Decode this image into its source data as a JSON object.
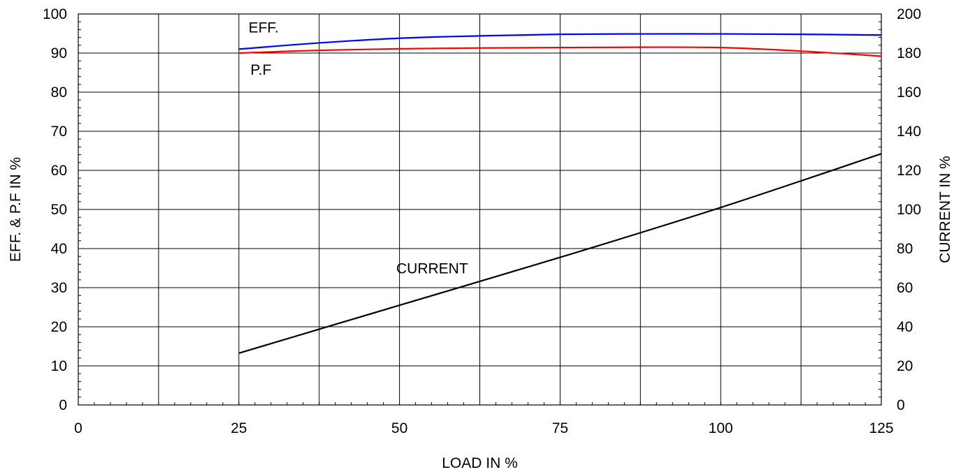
{
  "chart_data": {
    "type": "line",
    "xlabel": "LOAD IN %",
    "ylabel": "EFF. & P.F IN %",
    "y2label": "CURRENT IN %",
    "xlim": [
      0,
      125
    ],
    "ylim": [
      0,
      100
    ],
    "y2lim": [
      0,
      200
    ],
    "xticks": [
      0,
      25,
      50,
      75,
      100,
      125
    ],
    "yticks": [
      0,
      10,
      20,
      30,
      40,
      50,
      60,
      70,
      80,
      90,
      100
    ],
    "y2ticks": [
      0,
      20,
      40,
      60,
      80,
      100,
      120,
      140,
      160,
      180,
      200
    ],
    "grid": true,
    "series": [
      {
        "name": "EFF.",
        "axis": "left",
        "color": "#0000ff",
        "x": [
          25,
          37.5,
          50,
          62.5,
          75,
          87.5,
          100,
          112.5,
          125
        ],
        "values": [
          91.0,
          92.6,
          93.8,
          94.4,
          94.8,
          94.9,
          94.9,
          94.8,
          94.6
        ]
      },
      {
        "name": "P.F",
        "axis": "left",
        "color": "#ff0000",
        "x": [
          25,
          37.5,
          50,
          62.5,
          75,
          87.5,
          100,
          112.5,
          125
        ],
        "values": [
          90.0,
          90.7,
          91.1,
          91.3,
          91.4,
          91.5,
          91.4,
          90.5,
          89.2
        ]
      },
      {
        "name": "CURRENT",
        "axis": "right",
        "color": "#000000",
        "x": [
          25,
          50,
          75,
          100,
          125
        ],
        "values": [
          26.5,
          51,
          75.5,
          101,
          128.5
        ]
      }
    ]
  }
}
